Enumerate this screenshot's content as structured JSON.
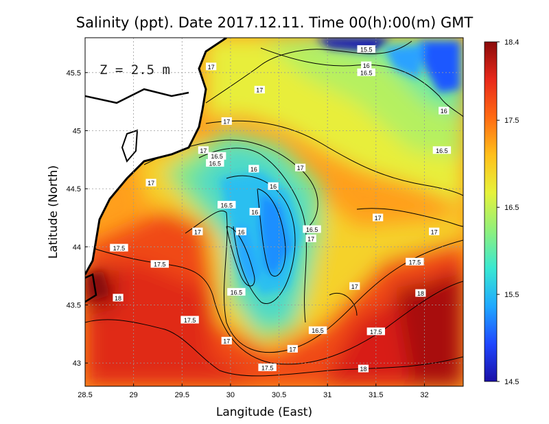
{
  "chart_data": {
    "type": "heatmap",
    "title": "Salinity (ppt). Date 2017.12.11. Time 00(h):00(m) GMT",
    "xlabel": "Langitude (East)",
    "ylabel": "Latitude (North)",
    "annotation": "Z = 2.5 m",
    "xlim": [
      28.5,
      32.4
    ],
    "ylim": [
      42.8,
      45.8
    ],
    "x_ticks": [
      "28.5",
      "29",
      "29.5",
      "30",
      "30.5",
      "31",
      "31.5",
      "32"
    ],
    "y_ticks": [
      "43",
      "43.5",
      "44",
      "44.5",
      "45",
      "45.5"
    ],
    "grid": true,
    "colorbar": {
      "range": [
        14.5,
        18.4
      ],
      "ticks": [
        "14.5",
        "15.5",
        "16.5",
        "17.5",
        "18.4"
      ],
      "colors": [
        "#1a0fa6",
        "#1f47ff",
        "#1fa8ff",
        "#39e8d2",
        "#8ff07c",
        "#e6f23a",
        "#ffbf1a",
        "#ff6a12",
        "#e8281a",
        "#8a0a0a"
      ]
    },
    "contour_labels": [
      {
        "lon": 31.4,
        "lat": 45.7,
        "text": "15.5"
      },
      {
        "lon": 31.4,
        "lat": 45.56,
        "text": "16"
      },
      {
        "lon": 31.4,
        "lat": 45.5,
        "text": "16.5"
      },
      {
        "lon": 29.8,
        "lat": 45.55,
        "text": "17"
      },
      {
        "lon": 30.3,
        "lat": 45.35,
        "text": "17"
      },
      {
        "lon": 32.2,
        "lat": 45.17,
        "text": "16"
      },
      {
        "lon": 29.96,
        "lat": 45.08,
        "text": "17"
      },
      {
        "lon": 29.86,
        "lat": 44.78,
        "text": "16.5"
      },
      {
        "lon": 29.84,
        "lat": 44.72,
        "text": "16.5"
      },
      {
        "lon": 29.72,
        "lat": 44.83,
        "text": "17"
      },
      {
        "lon": 32.18,
        "lat": 44.83,
        "text": "16.5"
      },
      {
        "lon": 30.72,
        "lat": 44.68,
        "text": "17"
      },
      {
        "lon": 30.24,
        "lat": 44.67,
        "text": "16"
      },
      {
        "lon": 30.44,
        "lat": 44.52,
        "text": "16"
      },
      {
        "lon": 29.18,
        "lat": 44.55,
        "text": "17"
      },
      {
        "lon": 29.96,
        "lat": 44.36,
        "text": "16.5"
      },
      {
        "lon": 30.25,
        "lat": 44.3,
        "text": "16"
      },
      {
        "lon": 30.84,
        "lat": 44.15,
        "text": "16.5"
      },
      {
        "lon": 30.83,
        "lat": 44.07,
        "text": "17"
      },
      {
        "lon": 31.52,
        "lat": 44.25,
        "text": "17"
      },
      {
        "lon": 29.66,
        "lat": 44.13,
        "text": "17"
      },
      {
        "lon": 30.11,
        "lat": 44.13,
        "text": "16"
      },
      {
        "lon": 32.1,
        "lat": 44.13,
        "text": "17"
      },
      {
        "lon": 28.85,
        "lat": 43.99,
        "text": "17.5"
      },
      {
        "lon": 29.27,
        "lat": 43.85,
        "text": "17.5"
      },
      {
        "lon": 31.9,
        "lat": 43.87,
        "text": "17.5"
      },
      {
        "lon": 31.28,
        "lat": 43.66,
        "text": "17"
      },
      {
        "lon": 30.06,
        "lat": 43.61,
        "text": "16.5"
      },
      {
        "lon": 31.96,
        "lat": 43.6,
        "text": "18"
      },
      {
        "lon": 28.84,
        "lat": 43.56,
        "text": "18"
      },
      {
        "lon": 29.58,
        "lat": 43.37,
        "text": "17.5"
      },
      {
        "lon": 30.9,
        "lat": 43.28,
        "text": "16.5"
      },
      {
        "lon": 31.5,
        "lat": 43.27,
        "text": "17.5"
      },
      {
        "lon": 29.96,
        "lat": 43.19,
        "text": "17"
      },
      {
        "lon": 30.64,
        "lat": 43.12,
        "text": "17"
      },
      {
        "lon": 30.38,
        "lat": 42.96,
        "text": "17.5"
      },
      {
        "lon": 31.37,
        "lat": 42.95,
        "text": "18"
      }
    ]
  }
}
